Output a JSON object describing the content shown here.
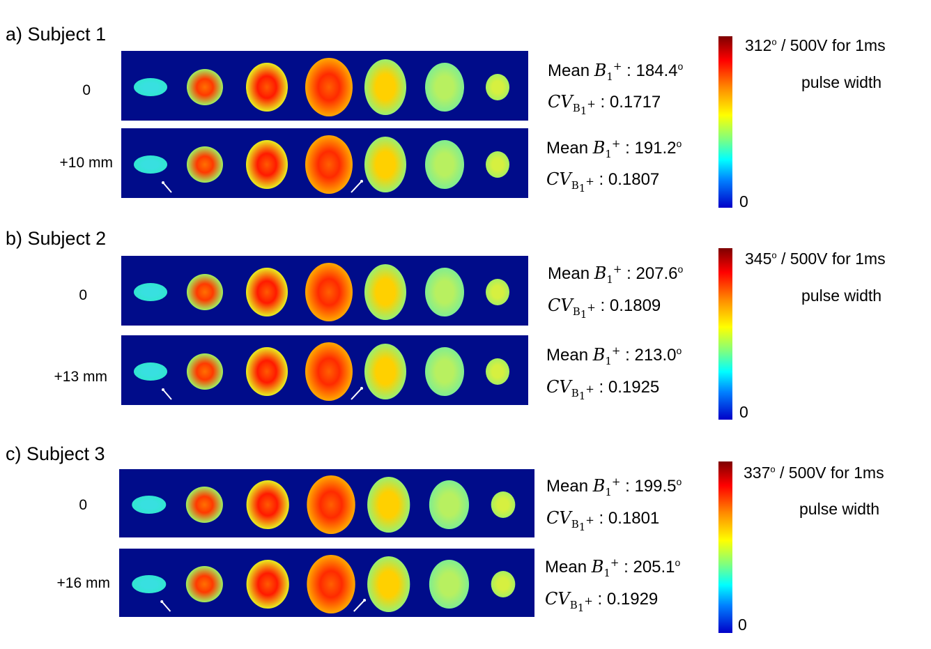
{
  "subjects": [
    {
      "title": "a) Subject 1",
      "colorbar": {
        "max_value": "312",
        "degree": "o",
        "max_rest": " / 500V for 1ms",
        "unit_line": "pulse width",
        "min": "0"
      },
      "rows": [
        {
          "offset": "0",
          "mean_label": "Mean ",
          "mean_value": " : 184.4",
          "cv_value": " : 0.1717"
        },
        {
          "offset": "+10 mm",
          "mean_label": "Mean ",
          "mean_value": " : 191.2",
          "cv_value": " : 0.1807"
        }
      ]
    },
    {
      "title": "b) Subject 2",
      "colorbar": {
        "max_value": "345",
        "degree": "o",
        "max_rest": " / 500V for 1ms",
        "unit_line": "pulse width",
        "min": "0"
      },
      "rows": [
        {
          "offset": "0",
          "mean_label": "Mean ",
          "mean_value": " : 207.6",
          "cv_value": " : 0.1809"
        },
        {
          "offset": "+13 mm",
          "mean_label": "Mean ",
          "mean_value": " : 213.0",
          "cv_value": " : 0.1925"
        }
      ]
    },
    {
      "title": "c) Subject 3",
      "colorbar": {
        "max_value": "337",
        "degree": "o",
        "max_rest": " / 500V for 1ms",
        "unit_line": "pulse width",
        "min": "0"
      },
      "rows": [
        {
          "offset": "0",
          "mean_label": "Mean ",
          "mean_value": " : 199.5",
          "cv_value": " : 0.1801"
        },
        {
          "offset": "+16 mm",
          "mean_label": "Mean ",
          "mean_value": " : 205.1",
          "cv_value": " : 0.1929"
        }
      ]
    }
  ],
  "symbol": {
    "b": "B",
    "sub": "1",
    "sup": "+",
    "cv": "CV"
  },
  "colors": {
    "background": "#000c8a",
    "arrow": "#ffffff"
  }
}
